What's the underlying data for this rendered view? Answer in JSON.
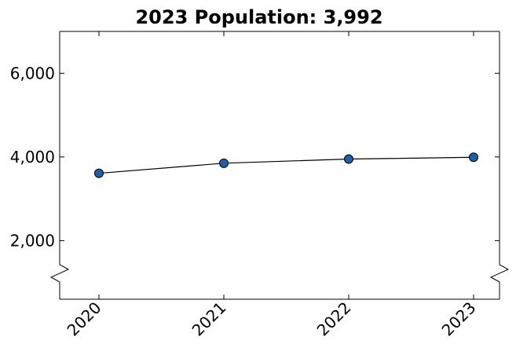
{
  "chart_data": {
    "type": "line",
    "title": "2023 Population: 3,992",
    "xlabel": "",
    "ylabel": "",
    "categories": [
      "2020",
      "2021",
      "2022",
      "2023"
    ],
    "series": [
      {
        "values": [
          3610,
          3850,
          3950,
          3992
        ]
      }
    ],
    "ylim": [
      600,
      7000
    ],
    "yticks": [
      2000,
      4000,
      6000
    ],
    "ytick_labels": [
      "2,000",
      "4,000",
      "6,000"
    ],
    "y_axis_break": true,
    "grid": false,
    "marker_color": "#1f5fa8",
    "line_color": "#000000"
  }
}
